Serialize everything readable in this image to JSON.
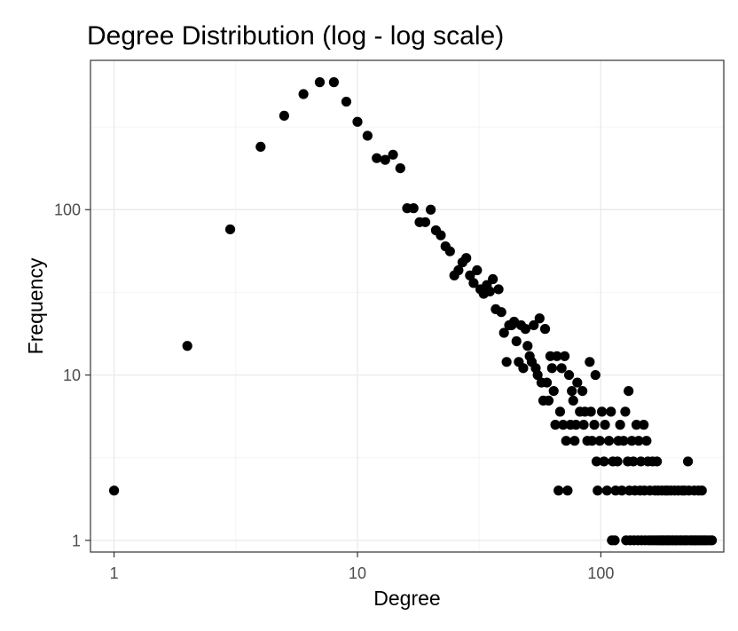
{
  "chart_data": {
    "type": "scatter",
    "title": "Degree Distribution (log - log scale)",
    "xlabel": "Degree",
    "ylabel": "Frequency",
    "x_scale": "log10",
    "y_scale": "log10",
    "xlim": [
      0.8,
      320
    ],
    "ylim": [
      0.85,
      800
    ],
    "x_ticks": [
      1,
      10,
      100
    ],
    "x_tick_labels": [
      "1",
      "10",
      "100"
    ],
    "y_ticks": [
      1,
      10,
      100
    ],
    "y_tick_labels": [
      "1",
      "10",
      "100"
    ],
    "grid": true,
    "legend": "none",
    "point_color": "#000000",
    "points": [
      {
        "x": 1,
        "y": 2
      },
      {
        "x": 2,
        "y": 15
      },
      {
        "x": 3,
        "y": 76
      },
      {
        "x": 4,
        "y": 240
      },
      {
        "x": 5,
        "y": 370
      },
      {
        "x": 6,
        "y": 500
      },
      {
        "x": 7,
        "y": 590
      },
      {
        "x": 8,
        "y": 590
      },
      {
        "x": 9,
        "y": 450
      },
      {
        "x": 10,
        "y": 340
      },
      {
        "x": 11,
        "y": 280
      },
      {
        "x": 12,
        "y": 205
      },
      {
        "x": 13,
        "y": 200
      },
      {
        "x": 14,
        "y": 215
      },
      {
        "x": 15,
        "y": 178
      },
      {
        "x": 16,
        "y": 102
      },
      {
        "x": 17,
        "y": 102
      },
      {
        "x": 18,
        "y": 84
      },
      {
        "x": 19,
        "y": 84
      },
      {
        "x": 20,
        "y": 100
      },
      {
        "x": 21,
        "y": 75
      },
      {
        "x": 22,
        "y": 70
      },
      {
        "x": 23,
        "y": 60
      },
      {
        "x": 24,
        "y": 56
      },
      {
        "x": 25,
        "y": 40
      },
      {
        "x": 26,
        "y": 43
      },
      {
        "x": 27,
        "y": 48
      },
      {
        "x": 28,
        "y": 51
      },
      {
        "x": 29,
        "y": 40
      },
      {
        "x": 30,
        "y": 36
      },
      {
        "x": 31,
        "y": 43
      },
      {
        "x": 32,
        "y": 33
      },
      {
        "x": 33,
        "y": 31
      },
      {
        "x": 34,
        "y": 35
      },
      {
        "x": 35,
        "y": 32
      },
      {
        "x": 36,
        "y": 38
      },
      {
        "x": 37,
        "y": 25
      },
      {
        "x": 38,
        "y": 33
      },
      {
        "x": 39,
        "y": 24
      },
      {
        "x": 40,
        "y": 18
      },
      {
        "x": 41,
        "y": 12
      },
      {
        "x": 42,
        "y": 20
      },
      {
        "x": 43,
        "y": 20
      },
      {
        "x": 44,
        "y": 21
      },
      {
        "x": 45,
        "y": 16
      },
      {
        "x": 46,
        "y": 12
      },
      {
        "x": 47,
        "y": 20
      },
      {
        "x": 48,
        "y": 11
      },
      {
        "x": 49,
        "y": 19
      },
      {
        "x": 50,
        "y": 15
      },
      {
        "x": 51,
        "y": 13
      },
      {
        "x": 52,
        "y": 12
      },
      {
        "x": 53,
        "y": 20
      },
      {
        "x": 54,
        "y": 11
      },
      {
        "x": 55,
        "y": 10
      },
      {
        "x": 56,
        "y": 22
      },
      {
        "x": 57,
        "y": 9
      },
      {
        "x": 58,
        "y": 7
      },
      {
        "x": 59,
        "y": 19
      },
      {
        "x": 60,
        "y": 9
      },
      {
        "x": 61,
        "y": 7
      },
      {
        "x": 62,
        "y": 13
      },
      {
        "x": 63,
        "y": 11
      },
      {
        "x": 64,
        "y": 8
      },
      {
        "x": 65,
        "y": 5
      },
      {
        "x": 66,
        "y": 13
      },
      {
        "x": 67,
        "y": 2
      },
      {
        "x": 68,
        "y": 6
      },
      {
        "x": 69,
        "y": 11
      },
      {
        "x": 70,
        "y": 5
      },
      {
        "x": 71,
        "y": 13
      },
      {
        "x": 72,
        "y": 4
      },
      {
        "x": 73,
        "y": 2
      },
      {
        "x": 74,
        "y": 10
      },
      {
        "x": 75,
        "y": 5
      },
      {
        "x": 76,
        "y": 8
      },
      {
        "x": 77,
        "y": 7
      },
      {
        "x": 78,
        "y": 4
      },
      {
        "x": 79,
        "y": 5
      },
      {
        "x": 80,
        "y": 9
      },
      {
        "x": 82,
        "y": 6
      },
      {
        "x": 84,
        "y": 8
      },
      {
        "x": 85,
        "y": 5
      },
      {
        "x": 86,
        "y": 6
      },
      {
        "x": 88,
        "y": 4
      },
      {
        "x": 90,
        "y": 12
      },
      {
        "x": 91,
        "y": 6
      },
      {
        "x": 92,
        "y": 4
      },
      {
        "x": 94,
        "y": 5
      },
      {
        "x": 95,
        "y": 10
      },
      {
        "x": 96,
        "y": 3
      },
      {
        "x": 97,
        "y": 2
      },
      {
        "x": 99,
        "y": 4
      },
      {
        "x": 101,
        "y": 6
      },
      {
        "x": 103,
        "y": 3
      },
      {
        "x": 104,
        "y": 5
      },
      {
        "x": 106,
        "y": 2
      },
      {
        "x": 108,
        "y": 4
      },
      {
        "x": 110,
        "y": 6
      },
      {
        "x": 111,
        "y": 1
      },
      {
        "x": 112,
        "y": 3
      },
      {
        "x": 114,
        "y": 1
      },
      {
        "x": 115,
        "y": 2
      },
      {
        "x": 117,
        "y": 3
      },
      {
        "x": 118,
        "y": 4
      },
      {
        "x": 120,
        "y": 5
      },
      {
        "x": 122,
        "y": 2
      },
      {
        "x": 124,
        "y": 4
      },
      {
        "x": 126,
        "y": 6
      },
      {
        "x": 127,
        "y": 1
      },
      {
        "x": 129,
        "y": 3
      },
      {
        "x": 130,
        "y": 8
      },
      {
        "x": 131,
        "y": 2
      },
      {
        "x": 132,
        "y": 1
      },
      {
        "x": 134,
        "y": 4
      },
      {
        "x": 136,
        "y": 3
      },
      {
        "x": 137,
        "y": 1
      },
      {
        "x": 138,
        "y": 2
      },
      {
        "x": 140,
        "y": 5
      },
      {
        "x": 142,
        "y": 1
      },
      {
        "x": 143,
        "y": 4
      },
      {
        "x": 145,
        "y": 2
      },
      {
        "x": 146,
        "y": 3
      },
      {
        "x": 147,
        "y": 1
      },
      {
        "x": 150,
        "y": 5
      },
      {
        "x": 151,
        "y": 2
      },
      {
        "x": 152,
        "y": 1
      },
      {
        "x": 154,
        "y": 4
      },
      {
        "x": 156,
        "y": 3
      },
      {
        "x": 157,
        "y": 1
      },
      {
        "x": 159,
        "y": 2
      },
      {
        "x": 161,
        "y": 1
      },
      {
        "x": 163,
        "y": 3
      },
      {
        "x": 165,
        "y": 1
      },
      {
        "x": 167,
        "y": 2
      },
      {
        "x": 169,
        "y": 1
      },
      {
        "x": 170,
        "y": 3
      },
      {
        "x": 172,
        "y": 2
      },
      {
        "x": 173,
        "y": 1
      },
      {
        "x": 176,
        "y": 1
      },
      {
        "x": 178,
        "y": 2
      },
      {
        "x": 179,
        "y": 1
      },
      {
        "x": 182,
        "y": 1
      },
      {
        "x": 184,
        "y": 2
      },
      {
        "x": 186,
        "y": 1
      },
      {
        "x": 188,
        "y": 2
      },
      {
        "x": 189,
        "y": 1
      },
      {
        "x": 192,
        "y": 1
      },
      {
        "x": 194,
        "y": 2
      },
      {
        "x": 196,
        "y": 1
      },
      {
        "x": 199,
        "y": 1
      },
      {
        "x": 201,
        "y": 2
      },
      {
        "x": 203,
        "y": 1
      },
      {
        "x": 206,
        "y": 1
      },
      {
        "x": 208,
        "y": 2
      },
      {
        "x": 211,
        "y": 1
      },
      {
        "x": 214,
        "y": 1
      },
      {
        "x": 216,
        "y": 2
      },
      {
        "x": 219,
        "y": 1
      },
      {
        "x": 221,
        "y": 2
      },
      {
        "x": 223,
        "y": 1
      },
      {
        "x": 226,
        "y": 1
      },
      {
        "x": 228,
        "y": 3
      },
      {
        "x": 230,
        "y": 2
      },
      {
        "x": 232,
        "y": 1
      },
      {
        "x": 236,
        "y": 1
      },
      {
        "x": 240,
        "y": 1
      },
      {
        "x": 242,
        "y": 2
      },
      {
        "x": 244,
        "y": 1
      },
      {
        "x": 248,
        "y": 1
      },
      {
        "x": 252,
        "y": 2
      },
      {
        "x": 253,
        "y": 1
      },
      {
        "x": 258,
        "y": 1
      },
      {
        "x": 260,
        "y": 2
      },
      {
        "x": 263,
        "y": 1
      },
      {
        "x": 268,
        "y": 1
      },
      {
        "x": 273,
        "y": 1
      },
      {
        "x": 280,
        "y": 1
      },
      {
        "x": 286,
        "y": 1
      }
    ]
  }
}
